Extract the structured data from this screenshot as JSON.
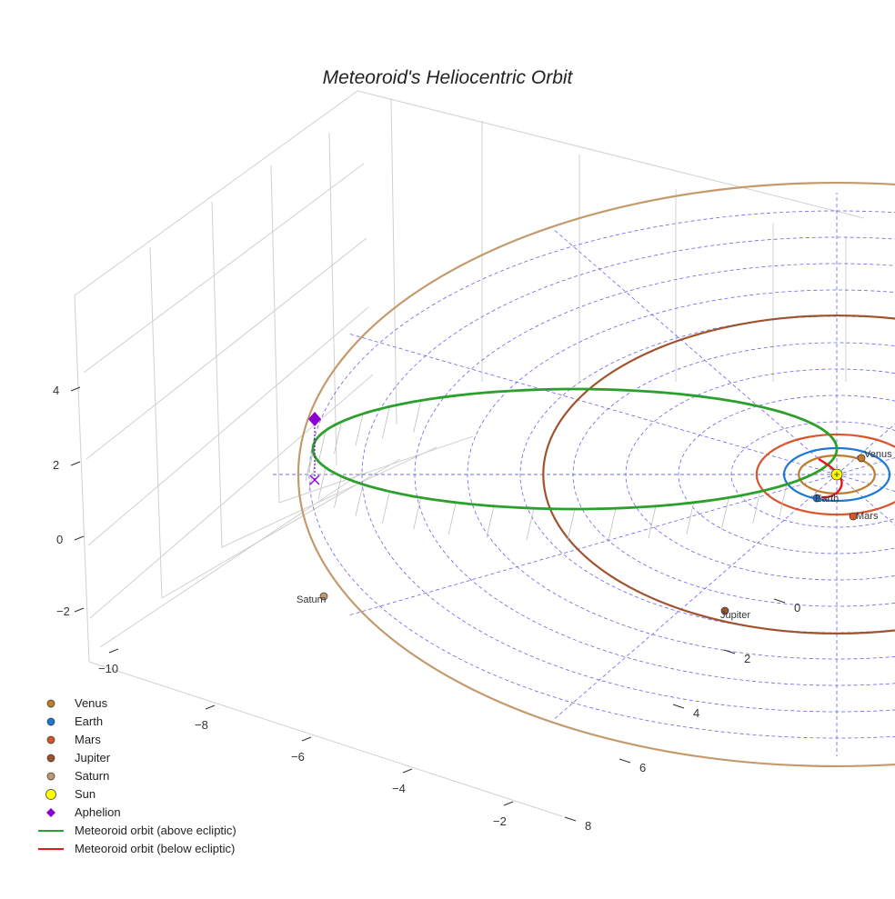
{
  "chart_data": {
    "type": "scatter",
    "title": "Meteoroid's Heliocentric Orbit",
    "xlabel": "",
    "ylabel": "",
    "zlabel": "",
    "projection": "3d",
    "x_ticks": [
      "−10",
      "−8",
      "−6",
      "−4",
      "−2"
    ],
    "y_ticks": [
      "0",
      "2",
      "4",
      "6",
      "8"
    ],
    "z_ticks": [
      "4",
      "2",
      "0",
      "−2"
    ],
    "grid": true,
    "legend_position": "bottom-left",
    "planets": [
      {
        "name": "Venus",
        "orbit_radius_au": 0.72,
        "color": "#c07a28"
      },
      {
        "name": "Earth",
        "orbit_radius_au": 1.0,
        "color": "#1f77d4"
      },
      {
        "name": "Mars",
        "orbit_radius_au": 1.52,
        "color": "#d9552b"
      },
      {
        "name": "Jupiter",
        "orbit_radius_au": 5.2,
        "color": "#a0522d"
      },
      {
        "name": "Saturn",
        "orbit_radius_au": 9.54,
        "color": "#c49a6c"
      }
    ],
    "sun": {
      "name": "Sun",
      "color": "#ffff00"
    },
    "aphelion": {
      "name": "Aphelion",
      "color": "#8b00d0"
    },
    "meteoroid_orbit": {
      "above_label": "Meteoroid orbit (above ecliptic)",
      "below_label": "Meteoroid orbit (below ecliptic)",
      "above_color": "#2ca02c",
      "below_color": "#e8141b"
    },
    "legend": [
      {
        "label": "Venus",
        "kind": "dot",
        "color": "#c07a28"
      },
      {
        "label": "Earth",
        "kind": "dot",
        "color": "#1f77d4"
      },
      {
        "label": "Mars",
        "kind": "dot",
        "color": "#d9552b"
      },
      {
        "label": "Jupiter",
        "kind": "dot",
        "color": "#a0522d"
      },
      {
        "label": "Saturn",
        "kind": "dot",
        "color": "#c49a6c"
      },
      {
        "label": "Sun",
        "kind": "bigdot",
        "color": "#ffff00"
      },
      {
        "label": "Aphelion",
        "kind": "diamond",
        "color": "#8b00d0"
      },
      {
        "label": "Meteoroid orbit (above ecliptic)",
        "kind": "line",
        "color": "#2ca02c"
      },
      {
        "label": "Meteoroid orbit (below ecliptic)",
        "kind": "line",
        "color": "#e8141b"
      }
    ]
  }
}
